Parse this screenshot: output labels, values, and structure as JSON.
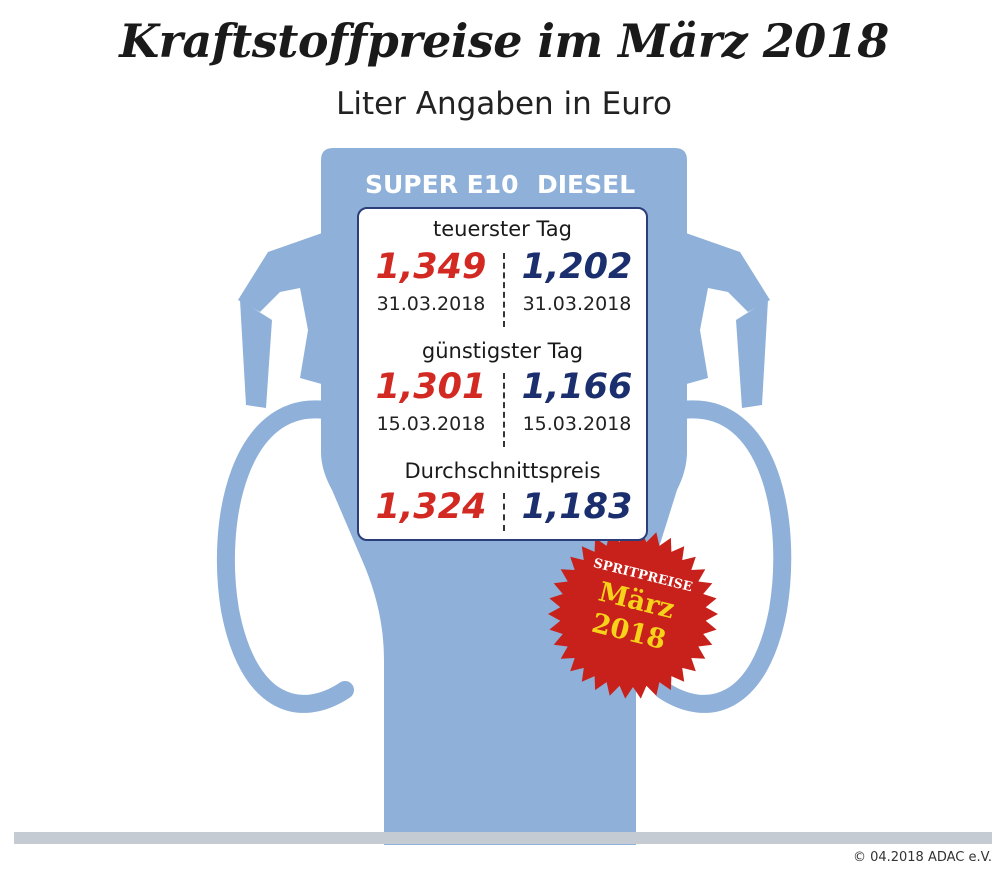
{
  "title": "Kraftstoffpreise im März 2018",
  "subtitle": "Liter Angaben in Euro",
  "columns": {
    "left": "SUPER E10",
    "right": "DIESEL"
  },
  "sections": [
    {
      "label": "teuerster Tag",
      "super_price": "1,349",
      "super_date": "31.03.2018",
      "diesel_price": "1,202",
      "diesel_date": "31.03.2018"
    },
    {
      "label": "günstigster Tag",
      "super_price": "1,301",
      "super_date": "15.03.2018",
      "diesel_price": "1,166",
      "diesel_date": "15.03.2018"
    },
    {
      "label": "Durchschnittspreis",
      "super_price": "1,324",
      "diesel_price": "1,183"
    }
  ],
  "badge": {
    "line1": "SPRITPREISE",
    "line2": "März",
    "line3": "2018"
  },
  "copyright": "© 04.2018  ADAC e.V.",
  "colors": {
    "pump": "#8fb1d9",
    "super": "#d22a22",
    "diesel": "#1b2f6e",
    "badge": "#c8211b",
    "badge_text": "#f7d21a"
  }
}
